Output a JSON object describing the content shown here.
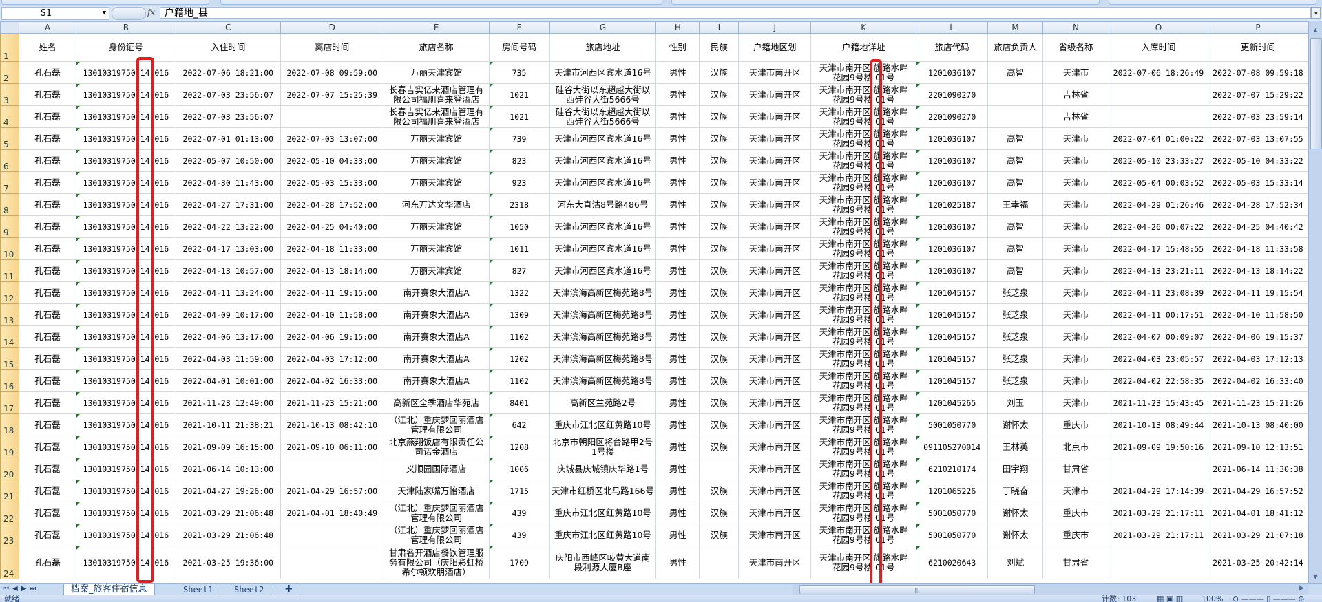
{
  "formula_bar": {
    "name_box": "S1",
    "fx_label": "fx",
    "content": "户籍地_县"
  },
  "column_letters": [
    "A",
    "B",
    "C",
    "D",
    "E",
    "F",
    "G",
    "H",
    "I",
    "J",
    "K",
    "L",
    "M",
    "N",
    "O",
    "P"
  ],
  "headers": [
    "姓名",
    "身份证号",
    "入住时间",
    "离店时间",
    "旅店名称",
    "房间号码",
    "旅店地址",
    "性别",
    "民族",
    "户籍地区划",
    "户籍地详址",
    "旅店代码",
    "旅店负责人",
    "省级名称",
    "入库时间",
    "更新时间"
  ],
  "row_numbers": [
    "1",
    "2",
    "3",
    "4",
    "5",
    "6",
    "7",
    "8",
    "9",
    "10",
    "11",
    "12",
    "13",
    "14",
    "15",
    "16",
    "17",
    "18",
    "19",
    "20",
    "21",
    "22",
    "23",
    "24"
  ],
  "rows": [
    [
      "孔石磊",
      "13010319750 14 016",
      "2022-07-06 18:21:00",
      "2022-07-08 09:59:00",
      "万丽天津宾馆",
      "735",
      "天津市河西区宾水道16号",
      "男性",
      "汉族",
      "天津市南开区",
      "天津市南开区 旗路水畔\n花园9号楼 01号",
      "1201036107",
      "高智",
      "天津市",
      "2022-07-06 18:26:49",
      "2022-07-08 09:59:18"
    ],
    [
      "孔石磊",
      "13010319750 14 016",
      "2022-07-03 23:56:07",
      "2022-07-07 15:25:39",
      "长春吉实亿来酒店管理有限公司福朋喜来登酒店",
      "1021",
      "硅谷大街以东超越大街以西硅谷大街5666号",
      "男性",
      "汉族",
      "天津市南开区",
      "天津市南开区 旗路水畔\n花园9号楼 01号",
      "2201090270",
      "",
      "吉林省",
      "",
      "2022-07-07 15:29:22"
    ],
    [
      "孔石磊",
      "13010319750 14 016",
      "2022-07-03 23:56:07",
      "",
      "长春吉实亿来酒店管理有限公司福朋喜来登酒店",
      "1021",
      "硅谷大街以东超越大街以西硅谷大街5666号",
      "男性",
      "汉族",
      "天津市南开区",
      "天津市南开区 旗路水畔\n花园9号楼 01号",
      "2201090270",
      "",
      "吉林省",
      "",
      "2022-07-03 23:59:14"
    ],
    [
      "孔石磊",
      "13010319750 14 016",
      "2022-07-01 01:13:00",
      "2022-07-03 13:07:00",
      "万丽天津宾馆",
      "739",
      "天津市河西区宾水道16号",
      "男性",
      "汉族",
      "天津市南开区",
      "天津市南开区 旗路水畔\n花园9号楼 01号",
      "1201036107",
      "高智",
      "天津市",
      "2022-07-04 01:00:22",
      "2022-07-03 13:07:55"
    ],
    [
      "孔石磊",
      "13010319750 14 016",
      "2022-05-07 10:50:00",
      "2022-05-10 04:33:00",
      "万丽天津宾馆",
      "823",
      "天津市河西区宾水道16号",
      "男性",
      "汉族",
      "天津市南开区",
      "天津市南开区 旗路水畔\n花园9号楼 01号",
      "1201036107",
      "高智",
      "天津市",
      "2022-05-10 23:33:27",
      "2022-05-10 04:33:22"
    ],
    [
      "孔石磊",
      "13010319750 14 016",
      "2022-04-30 11:43:00",
      "2022-05-03 15:33:00",
      "万丽天津宾馆",
      "923",
      "天津市河西区宾水道16号",
      "男性",
      "汉族",
      "天津市南开区",
      "天津市南开区 旗路水畔\n花园9号楼 01号",
      "1201036107",
      "高智",
      "天津市",
      "2022-05-04 00:03:52",
      "2022-05-03 15:33:14"
    ],
    [
      "孔石磊",
      "13010319750 14 016",
      "2022-04-27 17:31:00",
      "2022-04-28 17:52:00",
      "河东万达文华酒店",
      "2318",
      "河东大直沽8号路486号",
      "男性",
      "汉族",
      "天津市南开区",
      "天津市南开区 旗路水畔\n花园9号楼 01号",
      "1201025187",
      "王幸福",
      "天津市",
      "2022-04-29 01:26:46",
      "2022-04-28 17:52:34"
    ],
    [
      "孔石磊",
      "13010319750 14 016",
      "2022-04-22 13:22:00",
      "2022-04-25 04:40:00",
      "万丽天津宾馆",
      "1050",
      "天津市河西区宾水道16号",
      "男性",
      "汉族",
      "天津市南开区",
      "天津市南开区 旗路水畔\n花园9号楼 01号",
      "1201036107",
      "高智",
      "天津市",
      "2022-04-26 00:07:22",
      "2022-04-25 04:40:42"
    ],
    [
      "孔石磊",
      "13010319750 14 016",
      "2022-04-17 13:03:00",
      "2022-04-18 11:33:00",
      "万丽天津宾馆",
      "1011",
      "天津市河西区宾水道16号",
      "男性",
      "汉族",
      "天津市南开区",
      "天津市南开区 旗路水畔\n花园9号楼 01号",
      "1201036107",
      "高智",
      "天津市",
      "2022-04-17 15:48:55",
      "2022-04-18 11:33:58"
    ],
    [
      "孔石磊",
      "13010319750 14 016",
      "2022-04-13 10:57:00",
      "2022-04-13 18:14:00",
      "万丽天津宾馆",
      "827",
      "天津市河西区宾水道16号",
      "男性",
      "汉族",
      "天津市南开区",
      "天津市南开区 旗路水畔\n花园9号楼 01号",
      "1201036107",
      "高智",
      "天津市",
      "2022-04-13 23:21:11",
      "2022-04-13 18:14:22"
    ],
    [
      "孔石磊",
      "13010319750 14 016",
      "2022-04-11 13:24:00",
      "2022-04-11 19:15:00",
      "南开赛象大酒店A",
      "1322",
      "天津滨海高新区梅苑路8号",
      "男性",
      "汉族",
      "天津市南开区",
      "天津市南开区 旗路水畔\n花园9号楼 01号",
      "1201045157",
      "张芝泉",
      "天津市",
      "2022-04-11 23:08:39",
      "2022-04-11 19:15:54"
    ],
    [
      "孔石磊",
      "13010319750 14 016",
      "2022-04-09 10:17:00",
      "2022-04-10 11:58:00",
      "南开赛象大酒店A",
      "1309",
      "天津滨海高新区梅苑路8号",
      "男性",
      "汉族",
      "天津市南开区",
      "天津市南开区 旗路水畔\n花园9号楼 01号",
      "1201045157",
      "张芝泉",
      "天津市",
      "2022-04-11 00:17:51",
      "2022-04-10 11:58:50"
    ],
    [
      "孔石磊",
      "13010319750 14 016",
      "2022-04-06 13:17:00",
      "2022-04-06 19:15:00",
      "南开赛象大酒店A",
      "1102",
      "天津滨海高新区梅苑路8号",
      "男性",
      "汉族",
      "天津市南开区",
      "天津市南开区 旗路水畔\n花园9号楼 01号",
      "1201045157",
      "张芝泉",
      "天津市",
      "2022-04-07 00:09:07",
      "2022-04-06 19:15:37"
    ],
    [
      "孔石磊",
      "13010319750 14 016",
      "2022-04-03 11:59:00",
      "2022-04-03 17:12:00",
      "南开赛象大酒店A",
      "1202",
      "天津滨海高新区梅苑路8号",
      "男性",
      "汉族",
      "天津市南开区",
      "天津市南开区 旗路水畔\n花园9号楼 01号",
      "1201045157",
      "张芝泉",
      "天津市",
      "2022-04-03 23:05:57",
      "2022-04-03 17:12:13"
    ],
    [
      "孔石磊",
      "13010319750 14 016",
      "2022-04-01 10:01:00",
      "2022-04-02 16:33:00",
      "南开赛象大酒店A",
      "1102",
      "天津滨海高新区梅苑路8号",
      "男性",
      "汉族",
      "天津市南开区",
      "天津市南开区 旗路水畔\n花园9号楼 01号",
      "1201045157",
      "张芝泉",
      "天津市",
      "2022-04-02 22:58:35",
      "2022-04-02 16:33:40"
    ],
    [
      "孔石磊",
      "13010319750 14 016",
      "2021-11-23 12:49:00",
      "2021-11-23 15:21:00",
      "高新区全季酒店华苑店",
      "8401",
      "高新区兰苑路2号",
      "男性",
      "汉族",
      "天津市南开区",
      "天津市南开区 旗路水畔\n花园9号楼 01号",
      "1201045265",
      "刘玉",
      "天津市",
      "2021-11-23 15:43:45",
      "2021-11-23 15:21:26"
    ],
    [
      "孔石磊",
      "13010319750 14 016",
      "2021-10-11 21:38:21",
      "2021-10-13 08:42:10",
      "（江北）重庆梦回丽酒店管理有限公司",
      "642",
      "重庆市江北区红黄路10号",
      "男性",
      "汉族",
      "天津市南开区",
      "天津市南开区 旗路水畔\n花园9号楼 01号",
      "5001050770",
      "谢怀太",
      "重庆市",
      "2021-10-13 08:49:44",
      "2021-10-13 08:40:00"
    ],
    [
      "孔石磊",
      "13010319750 14 016",
      "2021-09-09 16:15:00",
      "2021-09-10 06:11:00",
      "北京燕翔饭店有限责任公司诺金酒店",
      "1208",
      "北京市朝阳区将台路甲2号1号楼",
      "男性",
      "汉族",
      "天津市南开区",
      "天津市南开区 旗路水畔\n花园9号楼 01号",
      "091105270014",
      "王林英",
      "北京市",
      "2021-09-09 19:50:16",
      "2021-09-10 12:13:51"
    ],
    [
      "孔石磊",
      "13010319750 14 016",
      "2021-06-14 10:13:00",
      "",
      "义顺园国际酒店",
      "1006",
      "庆城县庆城镇庆华路1号",
      "男性",
      "",
      "天津市南开区",
      "天津市南开区 旗路水畔\n花园9号楼 01号",
      "6210210174",
      "田宇翔",
      "甘肃省",
      "",
      "2021-06-14 11:30:38"
    ],
    [
      "孔石磊",
      "13010319750 14 016",
      "2021-04-27 19:26:00",
      "2021-04-29 16:57:00",
      "天津陆家嘴万怡酒店",
      "1715",
      "天津市红桥区北马路166号",
      "男性",
      "汉族",
      "天津市南开区",
      "天津市南开区 旗路水畔\n花园9号楼 01号",
      "1201065226",
      "丁晓奋",
      "天津市",
      "2021-04-29 17:14:39",
      "2021-04-29 16:57:52"
    ],
    [
      "孔石磊",
      "13010319750 14 016",
      "2021-03-29 21:06:48",
      "2021-04-01 18:40:49",
      "（江北）重庆梦回丽酒店管理有限公司",
      "439",
      "重庆市江北区红黄路10号",
      "男性",
      "汉族",
      "天津市南开区",
      "天津市南开区 旗路水畔\n花园9号楼 01号",
      "5001050770",
      "谢怀太",
      "重庆市",
      "2021-03-29 21:17:11",
      "2021-04-01 18:41:12"
    ],
    [
      "孔石磊",
      "13010319750 14 016",
      "2021-03-29 21:06:48",
      "",
      "（江北）重庆梦回丽酒店管理有限公司",
      "439",
      "重庆市江北区红黄路10号",
      "男性",
      "汉族",
      "天津市南开区",
      "天津市南开区 旗路水畔\n花园9号楼 01号",
      "5001050770",
      "谢怀太",
      "重庆市",
      "2021-03-29 21:17:11",
      "2021-03-29 21:07:18"
    ],
    [
      "孔石磊",
      "13010319750 14 016",
      "2021-03-25 19:36:00",
      "",
      "甘肃名开酒店餐饮管理服务有限公司（庆阳彩虹桥希尔顿欢朋酒店）",
      "1709",
      "庆阳市西峰区岐黄大道南段利源大厦B座",
      "男性",
      "",
      "天津市南开区",
      "天津市南开区 旗路水畔\n花园9号楼 01号",
      "6210020643",
      "刘斌",
      "甘肃省",
      "",
      "2021-03-25 20:42:14"
    ]
  ],
  "sheet_tabs": [
    "档案_旅客住宿信息",
    "Sheet1",
    "Sheet2"
  ],
  "active_tab": "档案_旅客住宿信息",
  "status_bar": {
    "ready": "就绪",
    "count": "计数: 103",
    "zoom": "100%"
  },
  "colors": {
    "highlight_box": "#e02020",
    "row_header_selected": "#f8d38b",
    "gridline": "#d0d7e5",
    "text_number_marker": "#1e7a1e"
  }
}
